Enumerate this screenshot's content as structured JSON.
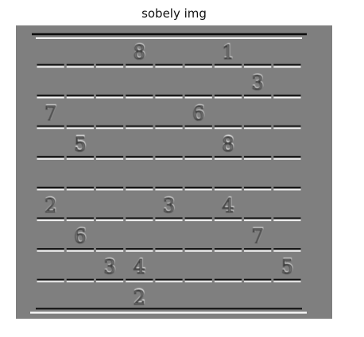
{
  "title": "sobely img",
  "colors": {
    "background": "#7f7f7f",
    "edge_dark": "#0c0c0c",
    "edge_light": "#f4f4f4"
  },
  "grid": {
    "rows": 9,
    "cols": 9,
    "cells": [
      [
        null,
        null,
        null,
        "8",
        null,
        null,
        "1",
        null,
        null
      ],
      [
        null,
        null,
        null,
        null,
        null,
        null,
        null,
        "3",
        null
      ],
      [
        "7",
        null,
        null,
        null,
        null,
        "6",
        null,
        null,
        null
      ],
      [
        null,
        "5",
        null,
        null,
        null,
        null,
        "8",
        null,
        null
      ],
      [
        null,
        null,
        null,
        null,
        null,
        null,
        null,
        null,
        null
      ],
      [
        "2",
        null,
        null,
        null,
        "3",
        null,
        "4",
        null,
        null
      ],
      [
        null,
        "6",
        null,
        null,
        null,
        null,
        null,
        "7",
        null
      ],
      [
        null,
        null,
        "3",
        "4",
        null,
        null,
        null,
        null,
        "5"
      ],
      [
        null,
        null,
        null,
        "2",
        null,
        null,
        null,
        null,
        null
      ]
    ]
  }
}
